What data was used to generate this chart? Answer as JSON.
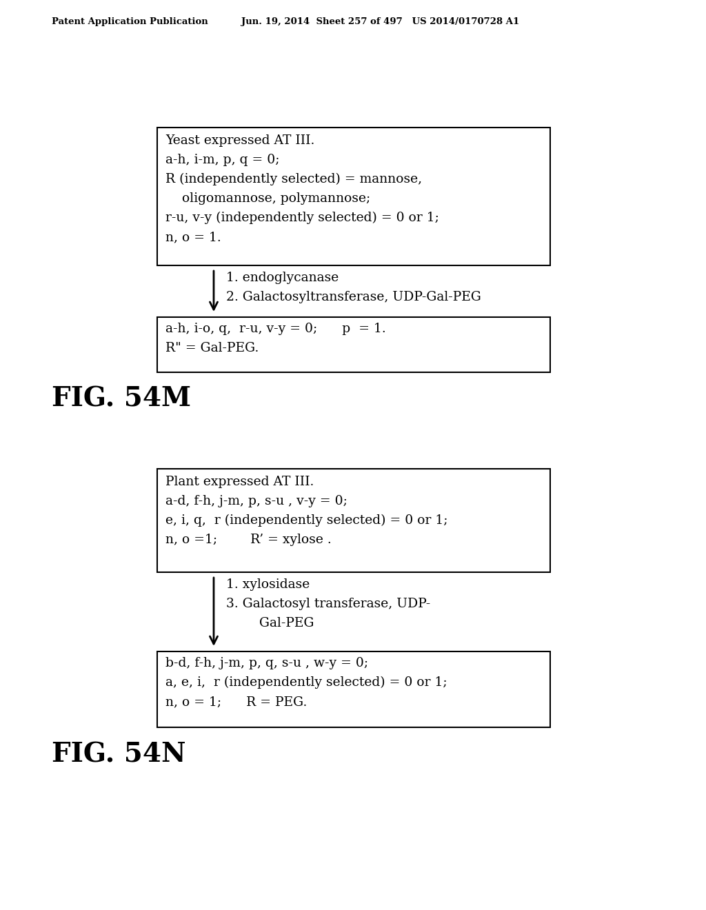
{
  "header_left": "Patent Application Publication",
  "header_mid": "Jun. 19, 2014  Sheet 257 of 497   US 2014/0170728 A1",
  "box1_lines": [
    "Yeast expressed AT III.",
    "a-h, i-m, p, q = 0;",
    "R (independently selected) = mannose,",
    "    oligomannose, polymannose;",
    "r-u, v-y (independently selected) = 0 or 1;",
    "n, o = 1."
  ],
  "arrow1_line1": "1. endoglycanase",
  "arrow1_line2": "2. Galactosyltransferase, UDP-Gal-PEG",
  "box2_lines": [
    "a-h, i-o, q,  r-u, v-y = 0;      p  = 1.",
    "R\" = Gal-PEG."
  ],
  "fig1_label": "FIG. 54M",
  "box3_lines": [
    "Plant expressed AT III.",
    "a-d, f-h, j-m, p, s-u , v-y = 0;",
    "e, i, q,  r (independently selected) = 0 or 1;",
    "n, o =1;        R’ = xylose ."
  ],
  "arrow2_line1": "1. xylosidase",
  "arrow2_line2": "3. Galactosyl transferase, UDP-",
  "arrow2_line3": "        Gal-PEG",
  "box4_lines": [
    "b-d, f-h, j-m, p, q, s-u , w-y = 0;",
    "a, e, i,  r (independently selected) = 0 or 1;",
    "n, o = 1;      R = PEG."
  ],
  "fig2_label": "FIG. 54N",
  "bg_color": "#ffffff",
  "text_color": "#000000",
  "box_edge_color": "#000000",
  "font_size_header": 9.5,
  "font_size_body": 13.5,
  "font_size_fig": 28
}
